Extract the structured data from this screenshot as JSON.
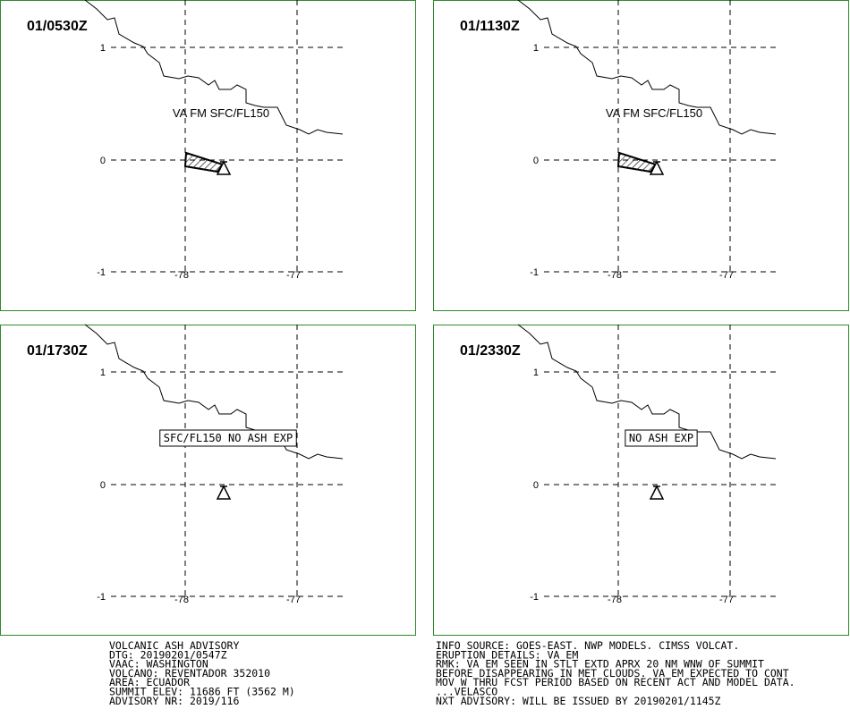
{
  "axes": {
    "lat_labels": [
      "1",
      "0",
      "-1"
    ],
    "lon_labels": [
      "-78",
      "-77"
    ]
  },
  "panels": [
    {
      "time": "01/0530Z",
      "label": "VA FM SFC/FL150",
      "boxed": false,
      "ash": true
    },
    {
      "time": "01/1130Z",
      "label": "VA FM SFC/FL150",
      "boxed": false,
      "ash": true
    },
    {
      "time": "01/1730Z",
      "label": "SFC/FL150 NO ASH EXP",
      "boxed": true,
      "ash": false
    },
    {
      "time": "01/2330Z",
      "label": "NO ASH EXP",
      "boxed": true,
      "ash": false
    }
  ],
  "footer_left": [
    "VOLCANIC ASH ADVISORY",
    "DTG: 20190201/0547Z",
    "VAAC: WASHINGTON",
    "VOLCANO: REVENTADOR 352010",
    "AREA: ECUADOR",
    "SUMMIT ELEV: 11686 FT (3562 M)",
    "ADVISORY NR: 2019/116"
  ],
  "footer_right": [
    "INFO SOURCE: GOES-EAST. NWP MODELS. CIMSS VOLCAT.",
    "ERUPTION DETAILS: VA EM",
    "RMK: VA EM SEEN IN STLT EXTD APRX 20 NM WNW OF SUMMIT",
    "BEFORE DISAPPEARING IN MET CLOUDS. VA EM EXPECTED TO CONT",
    "MOV W THRU FCST PERIOD BASED ON RECENT ACT AND MODEL DATA.",
    "...VELASCO",
    "NXT ADVISORY: WILL BE ISSUED BY 20190201/1145Z"
  ]
}
